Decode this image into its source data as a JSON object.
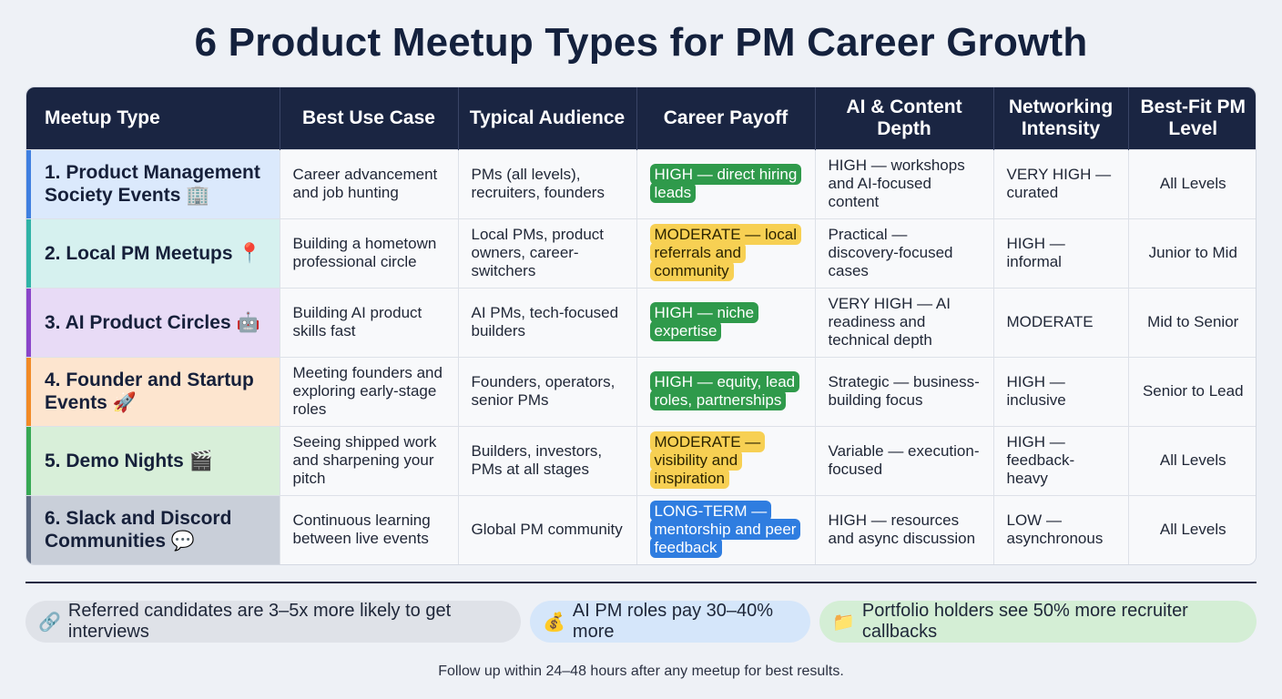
{
  "title": "6 Product Meetup Types for PM Career Growth",
  "headers": [
    "Meetup Type",
    "Best Use Case",
    "Typical Audience",
    "Career Payoff",
    "AI & Content Depth",
    "Networking Intensity",
    "Best-Fit PM Level"
  ],
  "rows": [
    {
      "type": "1. Product Management Society Events 🏢",
      "row_color": "#dbe9fc",
      "accent": "#3f7fe0",
      "use_case": "Career advancement and job hunting",
      "audience": "PMs (all levels), recruiters, founders",
      "payoff": "HIGH — direct hiring leads",
      "payoff_color": "green",
      "depth": "HIGH — workshops and AI-focused content",
      "networking": "VERY HIGH — curated",
      "level": "All Levels"
    },
    {
      "type": "2. Local PM Meetups 📍",
      "row_color": "#d6f1ef",
      "accent": "#2fb3a6",
      "use_case": "Building a hometown professional circle",
      "audience": "Local PMs, product owners, career-switchers",
      "payoff": "MODERATE — local referrals and community",
      "payoff_color": "yellow",
      "depth": "Practical — discovery-focused cases",
      "networking": "HIGH — informal",
      "level": "Junior to Mid"
    },
    {
      "type": "3. AI Product Circles 🤖",
      "row_color": "#e8dbf6",
      "accent": "#8a45c9",
      "use_case": "Building AI product skills fast",
      "audience": "AI PMs, tech-focused builders",
      "payoff": "HIGH — niche expertise",
      "payoff_color": "green",
      "depth": "VERY HIGH — AI readiness and technical depth",
      "networking": "MODERATE",
      "level": "Mid to Senior"
    },
    {
      "type": "4. Founder and Startup Events 🚀",
      "row_color": "#fde5cf",
      "accent": "#f28a26",
      "use_case": "Meeting founders and exploring early-stage roles",
      "audience": "Founders, operators, senior PMs",
      "payoff": "HIGH — equity, lead roles, partnerships",
      "payoff_color": "green",
      "depth": "Strategic — business-building focus",
      "networking": "HIGH — inclusive",
      "level": "Senior to Lead"
    },
    {
      "type": "5. Demo Nights 🎬",
      "row_color": "#d8efd9",
      "accent": "#36a853",
      "use_case": "Seeing shipped work and sharpening your pitch",
      "audience": "Builders, investors, PMs at all stages",
      "payoff": "MODERATE — visibility and inspiration",
      "payoff_color": "yellow",
      "depth": "Variable — execution-focused",
      "networking": "HIGH — feedback-heavy",
      "level": "All Levels"
    },
    {
      "type": "6. Slack and Discord Communities 💬",
      "row_color": "#c9cfd9",
      "accent": "#5d6a82",
      "use_case": "Continuous learning between live events",
      "audience": "Global PM community",
      "payoff": "LONG-TERM — mentorship and peer feedback",
      "payoff_color": "blue",
      "depth": "HIGH — resources and async discussion",
      "networking": "LOW — asynchronous",
      "level": "All Levels"
    }
  ],
  "stats": [
    {
      "icon": "🔗",
      "icon_name": "link-icon",
      "text": "Referred candidates are 3–5x more likely to get interviews"
    },
    {
      "icon": "💰",
      "icon_name": "money-bag-icon",
      "text": "AI PM roles pay 30–40% more"
    },
    {
      "icon": "📁",
      "icon_name": "folder-icon",
      "text": "Portfolio holders see 50% more recruiter callbacks"
    }
  ],
  "footer": "Follow up within 24–48 hours after any meetup for best results."
}
